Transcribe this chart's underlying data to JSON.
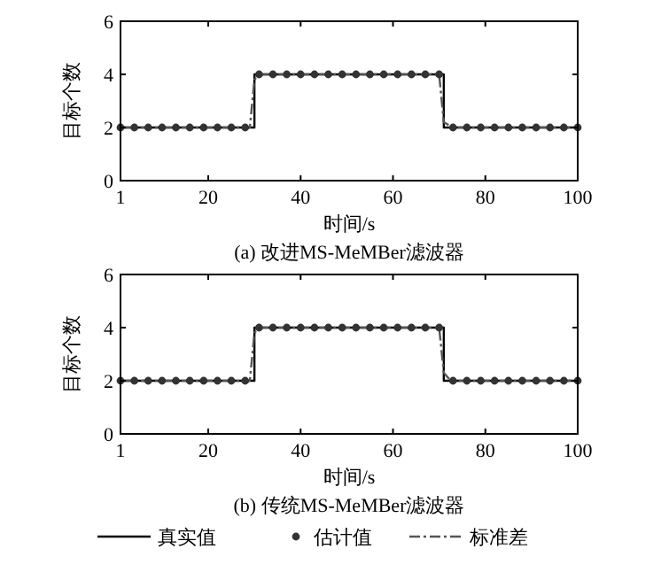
{
  "chart_data": [
    {
      "type": "line",
      "title": "(a) 改进MS-MeMBer滤波器",
      "xlabel": "时间/s",
      "ylabel": "目标个数",
      "xlim": [
        1,
        100
      ],
      "xticks": [
        1,
        20,
        40,
        60,
        80,
        100
      ],
      "ylim": [
        0,
        6
      ],
      "yticks": [
        0,
        2,
        4,
        6
      ],
      "grid": false,
      "series": [
        {
          "color": "#000000",
          "line_style": "solid",
          "x": [
            1,
            30,
            30,
            71,
            71,
            100
          ],
          "values": [
            2,
            2,
            4,
            4,
            2,
            2
          ]
        },
        {
          "type": "scatter",
          "color": "#333333",
          "marker": "circle",
          "x": [
            1,
            4,
            7,
            10,
            13,
            16,
            19,
            22,
            25,
            28,
            31,
            34,
            37,
            40,
            43,
            46,
            49,
            52,
            55,
            58,
            61,
            64,
            67,
            70,
            73,
            76,
            79,
            82,
            85,
            88,
            91,
            94,
            97,
            100
          ],
          "values": [
            2,
            2,
            2,
            2,
            2,
            2,
            2,
            2,
            2,
            2,
            4,
            4,
            4,
            4,
            4,
            4,
            4,
            4,
            4,
            4,
            4,
            4,
            4,
            4,
            2,
            2,
            2,
            2,
            2,
            2,
            2,
            2,
            2,
            2
          ]
        },
        {
          "color": "#555555",
          "line_style": "dashed",
          "x": [
            1,
            29,
            30,
            31,
            70,
            71,
            72,
            73,
            100
          ],
          "values": [
            2,
            2,
            3.8,
            4,
            4,
            2.2,
            2.1,
            2,
            2
          ]
        }
      ]
    },
    {
      "type": "line",
      "title": "(b) 传统MS-MeMBer滤波器",
      "xlabel": "时间/s",
      "ylabel": "目标个数",
      "xlim": [
        1,
        100
      ],
      "xticks": [
        1,
        20,
        40,
        60,
        80,
        100
      ],
      "ylim": [
        0,
        6
      ],
      "yticks": [
        0,
        2,
        4,
        6
      ],
      "grid": false,
      "legend": "bottom",
      "series": [
        {
          "name": "真实值",
          "color": "#000000",
          "line_style": "solid",
          "x": [
            1,
            30,
            30,
            71,
            71,
            100
          ],
          "values": [
            2,
            2,
            4,
            4,
            2,
            2
          ]
        },
        {
          "type": "scatter",
          "name": "估计值",
          "color": "#333333",
          "marker": "circle",
          "x": [
            1,
            4,
            7,
            10,
            13,
            16,
            19,
            22,
            25,
            28,
            31,
            34,
            37,
            40,
            43,
            46,
            49,
            52,
            55,
            58,
            61,
            64,
            67,
            70,
            73,
            76,
            79,
            82,
            85,
            88,
            91,
            94,
            97,
            100
          ],
          "values": [
            2,
            2,
            2,
            2,
            2,
            2,
            2,
            2,
            2,
            2,
            4,
            4,
            4,
            4,
            4,
            4,
            4,
            4,
            4,
            4,
            4,
            4,
            4,
            4,
            2,
            2,
            2,
            2,
            2,
            2,
            2,
            2,
            2,
            2
          ]
        },
        {
          "name": "标准差",
          "color": "#555555",
          "line_style": "dashed",
          "x": [
            1,
            29,
            30,
            31,
            70,
            71,
            72,
            73,
            100
          ],
          "values": [
            2,
            2,
            3.8,
            4,
            4,
            2.3,
            2.1,
            2,
            2
          ]
        }
      ]
    }
  ]
}
